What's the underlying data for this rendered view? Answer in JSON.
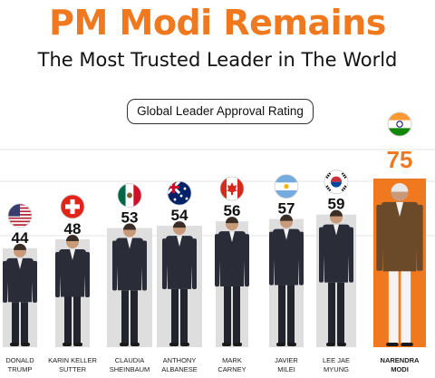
{
  "theme": {
    "accent": "#f0781f",
    "bar": "#dedede",
    "text": "#111111",
    "highlight_bar": "#f0781f"
  },
  "header": {
    "title": "PM Modi Remains",
    "subtitle": "The Most Trusted Leader in The World"
  },
  "chart_data": {
    "type": "bar",
    "title": "Global Leader Approval Rating",
    "categories": [
      "DONALD TRUMP",
      "KARIN KELLER SUTTER",
      "CLAUDIA SHEINBAUM",
      "ANTHONY ALBANESE",
      "MARK CARNEY",
      "JAVIER MILEI",
      "LEE JAE MYUNG",
      "NARENDRA MODI"
    ],
    "values": [
      44,
      48,
      53,
      54,
      56,
      57,
      59,
      75
    ],
    "highlight": "NARENDRA MODI",
    "flags": [
      "usa-flag-icon",
      "switzerland-flag-icon",
      "mexico-flag-icon",
      "australia-flag-icon",
      "canada-flag-icon",
      "argentina-flag-icon",
      "south-korea-flag-icon",
      "india-flag-icon"
    ],
    "leaders": [
      {
        "name_line1": "DONALD",
        "name_line2": "TRUMP",
        "value_label": "44"
      },
      {
        "name_line1": "KARIN KELLER",
        "name_line2": "SUTTER",
        "value_label": "48"
      },
      {
        "name_line1": "CLAUDIA",
        "name_line2": "SHEINBAUM",
        "value_label": "53"
      },
      {
        "name_line1": "ANTHONY",
        "name_line2": "ALBANESE",
        "value_label": "54"
      },
      {
        "name_line1": "MARK",
        "name_line2": "CARNEY",
        "value_label": "56"
      },
      {
        "name_line1": "JAVIER",
        "name_line2": "MILEI",
        "value_label": "57"
      },
      {
        "name_line1": "LEE JAE",
        "name_line2": "MYUNG",
        "value_label": "59"
      },
      {
        "name_line1": "NARENDRA",
        "name_line2": "MODI",
        "value_label": "75"
      }
    ]
  }
}
